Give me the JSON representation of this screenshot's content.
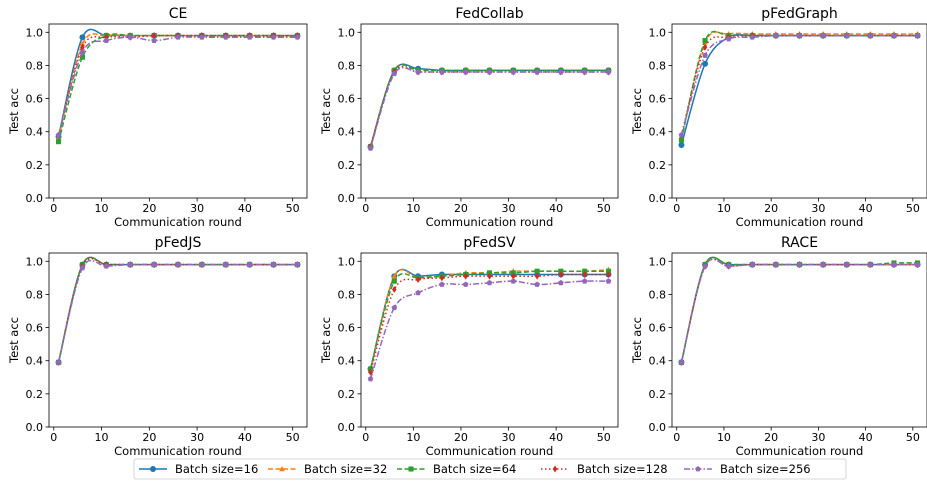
{
  "chart_data": [
    {
      "type": "line",
      "title": "CE",
      "xlabel": "Communication round",
      "ylabel": "Test acc",
      "xlim": [
        -1,
        53
      ],
      "ylim": [
        0,
        1.05
      ],
      "xticks": [
        0,
        10,
        20,
        30,
        40,
        50
      ],
      "yticks": [
        0.0,
        0.2,
        0.4,
        0.6,
        0.8,
        1.0
      ],
      "x": [
        1,
        6,
        11,
        16,
        21,
        26,
        31,
        36,
        41,
        46,
        51
      ],
      "series": [
        {
          "name": "Batch size=16",
          "values": [
            0.37,
            0.97,
            0.98,
            0.98,
            0.98,
            0.98,
            0.98,
            0.98,
            0.98,
            0.98,
            0.98
          ]
        },
        {
          "name": "Batch size=32",
          "values": [
            0.36,
            0.93,
            0.98,
            0.98,
            0.98,
            0.98,
            0.98,
            0.98,
            0.98,
            0.98,
            0.98
          ]
        },
        {
          "name": "Batch size=64",
          "values": [
            0.34,
            0.85,
            0.98,
            0.98,
            0.98,
            0.98,
            0.98,
            0.98,
            0.98,
            0.98,
            0.98
          ]
        },
        {
          "name": "Batch size=128",
          "values": [
            0.38,
            0.91,
            0.97,
            0.97,
            0.98,
            0.98,
            0.98,
            0.98,
            0.98,
            0.98,
            0.98
          ]
        },
        {
          "name": "Batch size=256",
          "values": [
            0.38,
            0.88,
            0.95,
            0.97,
            0.95,
            0.97,
            0.97,
            0.97,
            0.97,
            0.97,
            0.97
          ]
        }
      ]
    },
    {
      "type": "line",
      "title": "FedCollab",
      "xlabel": "Communication round",
      "ylabel": "Test acc",
      "xlim": [
        -1,
        53
      ],
      "ylim": [
        0,
        1.05
      ],
      "xticks": [
        0,
        10,
        20,
        30,
        40,
        50
      ],
      "yticks": [
        0.0,
        0.2,
        0.4,
        0.6,
        0.8,
        1.0
      ],
      "x": [
        1,
        6,
        11,
        16,
        21,
        26,
        31,
        36,
        41,
        46,
        51
      ],
      "series": [
        {
          "name": "Batch size=16",
          "values": [
            0.31,
            0.77,
            0.78,
            0.77,
            0.77,
            0.77,
            0.77,
            0.77,
            0.77,
            0.77,
            0.77
          ]
        },
        {
          "name": "Batch size=32",
          "values": [
            0.31,
            0.77,
            0.77,
            0.77,
            0.77,
            0.77,
            0.77,
            0.77,
            0.77,
            0.77,
            0.77
          ]
        },
        {
          "name": "Batch size=64",
          "values": [
            0.31,
            0.77,
            0.77,
            0.77,
            0.77,
            0.77,
            0.77,
            0.77,
            0.77,
            0.77,
            0.77
          ]
        },
        {
          "name": "Batch size=128",
          "values": [
            0.31,
            0.76,
            0.76,
            0.76,
            0.76,
            0.76,
            0.76,
            0.76,
            0.76,
            0.76,
            0.76
          ]
        },
        {
          "name": "Batch size=256",
          "values": [
            0.3,
            0.75,
            0.76,
            0.76,
            0.76,
            0.76,
            0.76,
            0.76,
            0.76,
            0.76,
            0.76
          ]
        }
      ]
    },
    {
      "type": "line",
      "title": "pFedGraph",
      "xlabel": "Communication round",
      "ylabel": "Test acc",
      "xlim": [
        -1,
        53
      ],
      "ylim": [
        0,
        1.05
      ],
      "xticks": [
        0,
        10,
        20,
        30,
        40,
        50
      ],
      "yticks": [
        0.0,
        0.2,
        0.4,
        0.6,
        0.8,
        1.0
      ],
      "x": [
        1,
        6,
        11,
        16,
        21,
        26,
        31,
        36,
        41,
        46,
        51
      ],
      "series": [
        {
          "name": "Batch size=16",
          "values": [
            0.32,
            0.81,
            0.97,
            0.98,
            0.98,
            0.98,
            0.98,
            0.98,
            0.98,
            0.98,
            0.98
          ]
        },
        {
          "name": "Batch size=32",
          "values": [
            0.36,
            0.94,
            0.99,
            0.99,
            0.99,
            0.99,
            0.99,
            0.99,
            0.99,
            0.99,
            0.99
          ]
        },
        {
          "name": "Batch size=64",
          "values": [
            0.35,
            0.95,
            0.98,
            0.98,
            0.98,
            0.98,
            0.98,
            0.98,
            0.98,
            0.98,
            0.98
          ]
        },
        {
          "name": "Batch size=128",
          "values": [
            0.38,
            0.91,
            0.97,
            0.98,
            0.98,
            0.98,
            0.98,
            0.98,
            0.98,
            0.98,
            0.98
          ]
        },
        {
          "name": "Batch size=256",
          "values": [
            0.38,
            0.86,
            0.96,
            0.97,
            0.98,
            0.98,
            0.98,
            0.98,
            0.98,
            0.98,
            0.98
          ]
        }
      ]
    },
    {
      "type": "line",
      "title": "pFedJS",
      "xlabel": "Communication round",
      "ylabel": "Test acc",
      "xlim": [
        -1,
        53
      ],
      "ylim": [
        0,
        1.05
      ],
      "xticks": [
        0,
        10,
        20,
        30,
        40,
        50
      ],
      "yticks": [
        0.0,
        0.2,
        0.4,
        0.6,
        0.8,
        1.0
      ],
      "x": [
        1,
        6,
        11,
        16,
        21,
        26,
        31,
        36,
        41,
        46,
        51
      ],
      "series": [
        {
          "name": "Batch size=16",
          "values": [
            0.39,
            0.98,
            0.98,
            0.98,
            0.98,
            0.98,
            0.98,
            0.98,
            0.98,
            0.98,
            0.98
          ]
        },
        {
          "name": "Batch size=32",
          "values": [
            0.39,
            0.98,
            0.98,
            0.98,
            0.98,
            0.98,
            0.98,
            0.98,
            0.98,
            0.98,
            0.98
          ]
        },
        {
          "name": "Batch size=64",
          "values": [
            0.39,
            0.98,
            0.98,
            0.98,
            0.98,
            0.98,
            0.98,
            0.98,
            0.98,
            0.98,
            0.98
          ]
        },
        {
          "name": "Batch size=128",
          "values": [
            0.39,
            0.97,
            0.98,
            0.98,
            0.98,
            0.98,
            0.98,
            0.98,
            0.98,
            0.98,
            0.98
          ]
        },
        {
          "name": "Batch size=256",
          "values": [
            0.39,
            0.96,
            0.97,
            0.98,
            0.98,
            0.98,
            0.98,
            0.98,
            0.98,
            0.98,
            0.98
          ]
        }
      ]
    },
    {
      "type": "line",
      "title": "pFedSV",
      "xlabel": "Communication round",
      "ylabel": "Test acc",
      "xlim": [
        -1,
        53
      ],
      "ylim": [
        0,
        1.05
      ],
      "xticks": [
        0,
        10,
        20,
        30,
        40,
        50
      ],
      "yticks": [
        0.0,
        0.2,
        0.4,
        0.6,
        0.8,
        1.0
      ],
      "x": [
        1,
        6,
        11,
        16,
        21,
        26,
        31,
        36,
        41,
        46,
        51
      ],
      "series": [
        {
          "name": "Batch size=16",
          "values": [
            0.35,
            0.91,
            0.91,
            0.92,
            0.92,
            0.92,
            0.92,
            0.92,
            0.92,
            0.92,
            0.92
          ]
        },
        {
          "name": "Batch size=32",
          "values": [
            0.34,
            0.91,
            0.9,
            0.91,
            0.93,
            0.93,
            0.94,
            0.94,
            0.94,
            0.94,
            0.95
          ]
        },
        {
          "name": "Batch size=64",
          "values": [
            0.35,
            0.88,
            0.9,
            0.91,
            0.92,
            0.93,
            0.93,
            0.94,
            0.94,
            0.94,
            0.94
          ]
        },
        {
          "name": "Batch size=128",
          "values": [
            0.33,
            0.83,
            0.89,
            0.9,
            0.91,
            0.91,
            0.91,
            0.91,
            0.92,
            0.92,
            0.92
          ]
        },
        {
          "name": "Batch size=256",
          "values": [
            0.29,
            0.72,
            0.81,
            0.86,
            0.86,
            0.87,
            0.88,
            0.86,
            0.87,
            0.88,
            0.88
          ]
        }
      ]
    },
    {
      "type": "line",
      "title": "RACE",
      "xlabel": "Communication round",
      "ylabel": "Test acc",
      "xlim": [
        -1,
        53
      ],
      "ylim": [
        0,
        1.05
      ],
      "xticks": [
        0,
        10,
        20,
        30,
        40,
        50
      ],
      "yticks": [
        0.0,
        0.2,
        0.4,
        0.6,
        0.8,
        1.0
      ],
      "x": [
        1,
        6,
        11,
        16,
        21,
        26,
        31,
        36,
        41,
        46,
        51
      ],
      "series": [
        {
          "name": "Batch size=16",
          "values": [
            0.39,
            0.98,
            0.98,
            0.98,
            0.98,
            0.98,
            0.98,
            0.98,
            0.98,
            0.98,
            0.98
          ]
        },
        {
          "name": "Batch size=32",
          "values": [
            0.39,
            0.98,
            0.98,
            0.98,
            0.98,
            0.98,
            0.98,
            0.98,
            0.98,
            0.98,
            0.98
          ]
        },
        {
          "name": "Batch size=64",
          "values": [
            0.39,
            0.98,
            0.98,
            0.98,
            0.98,
            0.98,
            0.98,
            0.98,
            0.98,
            0.99,
            0.99
          ]
        },
        {
          "name": "Batch size=128",
          "values": [
            0.39,
            0.97,
            0.97,
            0.98,
            0.98,
            0.98,
            0.98,
            0.98,
            0.98,
            0.98,
            0.98
          ]
        },
        {
          "name": "Batch size=256",
          "values": [
            0.39,
            0.97,
            0.97,
            0.98,
            0.98,
            0.98,
            0.98,
            0.98,
            0.98,
            0.98,
            0.98
          ]
        }
      ]
    }
  ],
  "legend": {
    "placement": "bottom-center",
    "entries": [
      "Batch size=16",
      "Batch size=32",
      "Batch size=64",
      "Batch size=128",
      "Batch size=256"
    ]
  },
  "series_style": [
    {
      "color": "#1f77b4",
      "dash": "solid",
      "marker": "circle"
    },
    {
      "color": "#ff7f0e",
      "dash": "dashed",
      "marker": "triangle"
    },
    {
      "color": "#2ca02c",
      "dash": "dashed",
      "marker": "square"
    },
    {
      "color": "#d62728",
      "dash": "dotted",
      "marker": "diamond"
    },
    {
      "color": "#9467bd",
      "dash": "dashdot",
      "marker": "pentagon"
    }
  ]
}
